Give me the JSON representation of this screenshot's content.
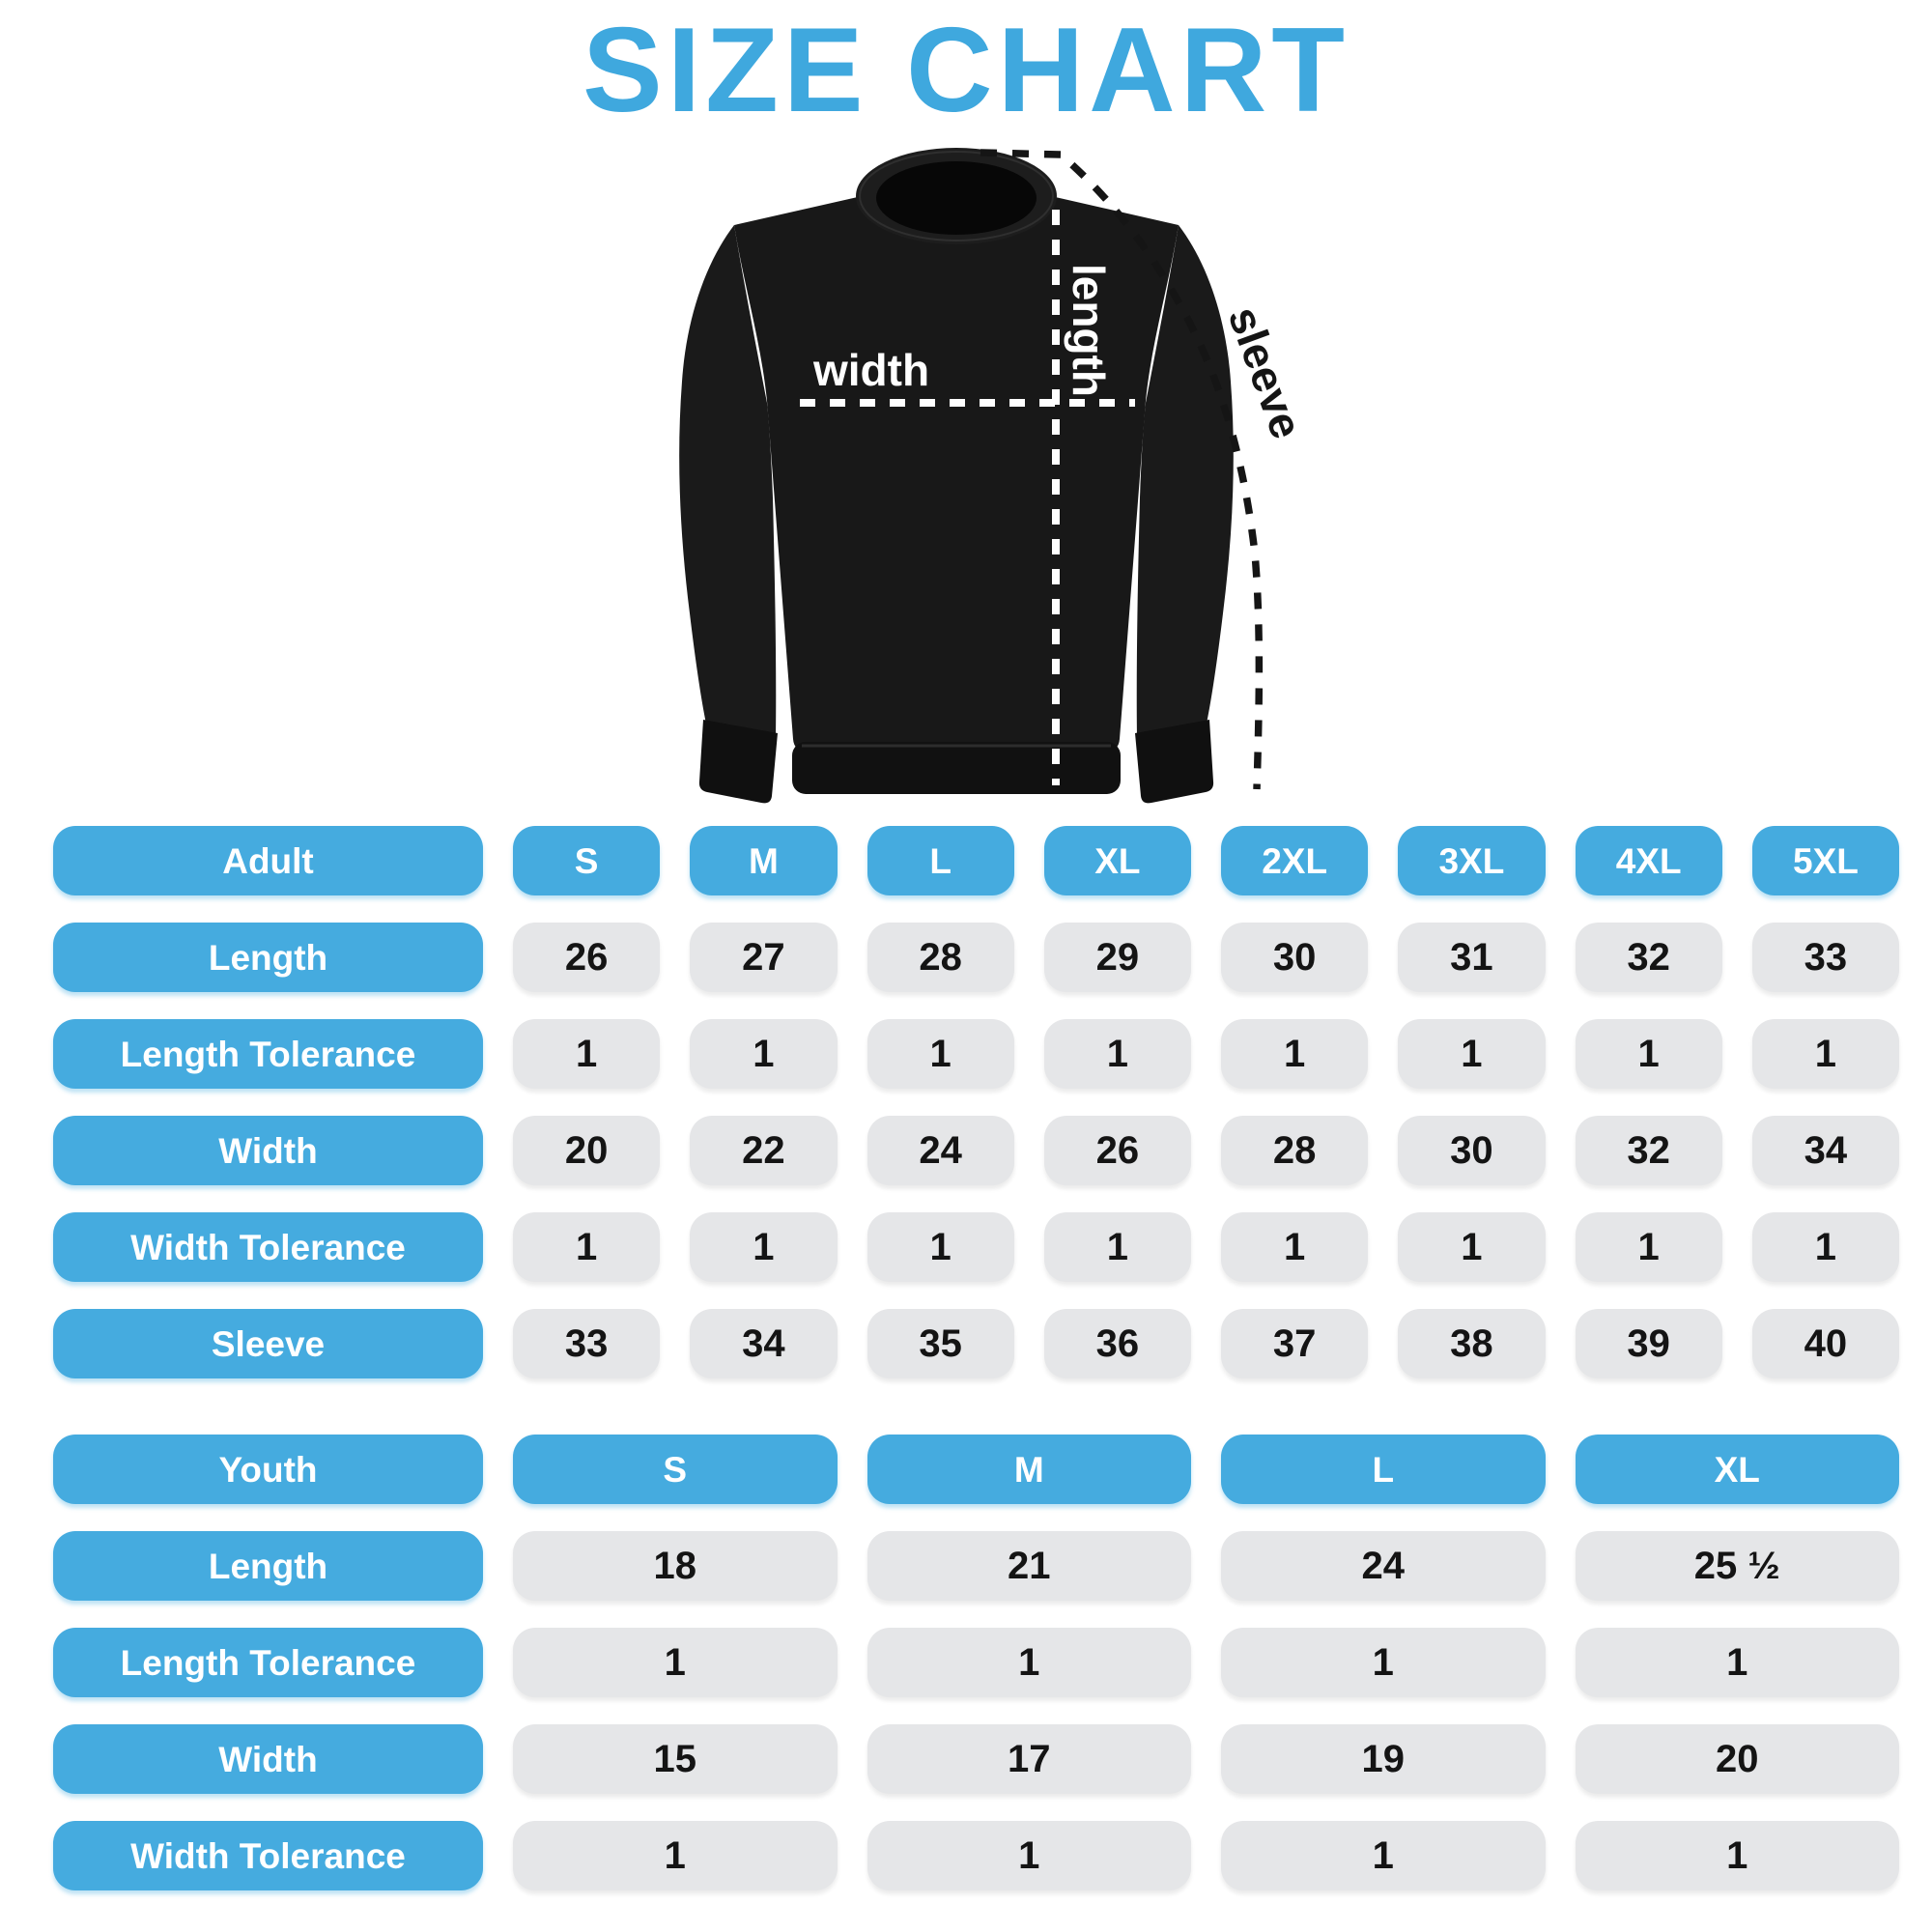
{
  "title": "SIZE CHART",
  "colors": {
    "accent_blue": "#45ABDF",
    "cell_gray": "#E5E6E8",
    "value_text": "#141414",
    "garment_black": "#181818",
    "annotation_white": "#FFFFFF"
  },
  "garment": {
    "length_label": "length",
    "width_label": "width",
    "sleeve_label": "sleeve"
  },
  "adult_table": {
    "header": [
      "Adult",
      "S",
      "M",
      "L",
      "XL",
      "2XL",
      "3XL",
      "4XL",
      "5XL"
    ],
    "rows": [
      {
        "label": "Length",
        "values": [
          "26",
          "27",
          "28",
          "29",
          "30",
          "31",
          "32",
          "33"
        ]
      },
      {
        "label": "Length Tolerance",
        "values": [
          "1",
          "1",
          "1",
          "1",
          "1",
          "1",
          "1",
          "1"
        ]
      },
      {
        "label": "Width",
        "values": [
          "20",
          "22",
          "24",
          "26",
          "28",
          "30",
          "32",
          "34"
        ]
      },
      {
        "label": "Width Tolerance",
        "values": [
          "1",
          "1",
          "1",
          "1",
          "1",
          "1",
          "1",
          "1"
        ]
      },
      {
        "label": "Sleeve",
        "values": [
          "33",
          "34",
          "35",
          "36",
          "37",
          "38",
          "39",
          "40"
        ]
      }
    ]
  },
  "youth_table": {
    "header": [
      "Youth",
      "S",
      "M",
      "L",
      "XL"
    ],
    "rows": [
      {
        "label": "Length",
        "values": [
          "18",
          "21",
          "24",
          "25 ½"
        ]
      },
      {
        "label": "Length Tolerance",
        "values": [
          "1",
          "1",
          "1",
          "1"
        ]
      },
      {
        "label": "Width",
        "values": [
          "15",
          "17",
          "19",
          "20"
        ]
      },
      {
        "label": "Width Tolerance",
        "values": [
          "1",
          "1",
          "1",
          "1"
        ]
      }
    ]
  },
  "chart_data": {
    "type": "table",
    "title": "SIZE CHART",
    "tables": [
      {
        "name": "Adult",
        "columns": [
          "S",
          "M",
          "L",
          "XL",
          "2XL",
          "3XL",
          "4XL",
          "5XL"
        ],
        "rows": {
          "Length": [
            26,
            27,
            28,
            29,
            30,
            31,
            32,
            33
          ],
          "Length Tolerance": [
            1,
            1,
            1,
            1,
            1,
            1,
            1,
            1
          ],
          "Width": [
            20,
            22,
            24,
            26,
            28,
            30,
            32,
            34
          ],
          "Width Tolerance": [
            1,
            1,
            1,
            1,
            1,
            1,
            1,
            1
          ],
          "Sleeve": [
            33,
            34,
            35,
            36,
            37,
            38,
            39,
            40
          ]
        }
      },
      {
        "name": "Youth",
        "columns": [
          "S",
          "M",
          "L",
          "XL"
        ],
        "rows": {
          "Length": [
            18,
            21,
            24,
            25.5
          ],
          "Length Tolerance": [
            1,
            1,
            1,
            1
          ],
          "Width": [
            15,
            17,
            19,
            20
          ],
          "Width Tolerance": [
            1,
            1,
            1,
            1
          ]
        }
      }
    ]
  }
}
